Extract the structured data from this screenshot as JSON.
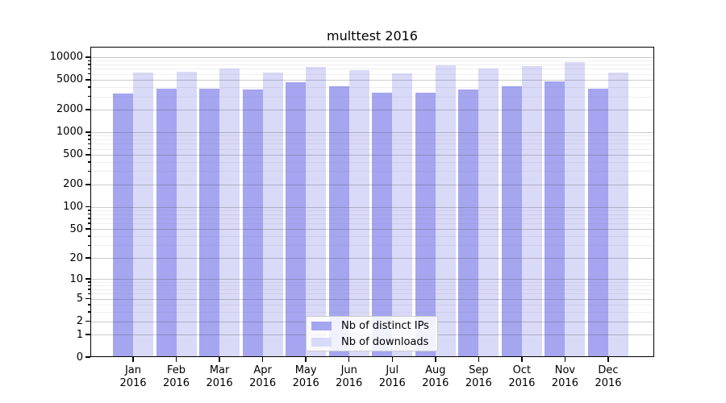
{
  "chart_data": {
    "type": "bar",
    "title": "multtest 2016",
    "categories": [
      "Jan",
      "Feb",
      "Mar",
      "Apr",
      "May",
      "Jun",
      "Jul",
      "Aug",
      "Sep",
      "Oct",
      "Nov",
      "Dec"
    ],
    "x_year": "2016",
    "series": [
      {
        "name": "Nb of distinct IPs",
        "color": "#a5a5f0",
        "values": [
          3300,
          3800,
          3800,
          3700,
          4650,
          4100,
          3350,
          3350,
          3700,
          4100,
          4750,
          3800
        ]
      },
      {
        "name": "Nb of downloads",
        "color": "#d9d9f8",
        "values": [
          6300,
          6400,
          7050,
          6250,
          7400,
          6800,
          6100,
          7800,
          7050,
          7650,
          8600,
          6200
        ]
      }
    ],
    "y_ticks": [
      0,
      1,
      2,
      5,
      10,
      20,
      50,
      100,
      200,
      500,
      1000,
      2000,
      5000,
      10000
    ],
    "y_minor_ticks": [
      3,
      4,
      6,
      7,
      8,
      9,
      30,
      40,
      60,
      70,
      80,
      90,
      300,
      400,
      600,
      700,
      800,
      900,
      3000,
      4000,
      6000,
      7000,
      8000,
      9000
    ],
    "scale": "symlog (y ~ log10(1+v))",
    "ylim": [
      0,
      13800
    ],
    "grid": true,
    "legend_position": "lower center"
  }
}
